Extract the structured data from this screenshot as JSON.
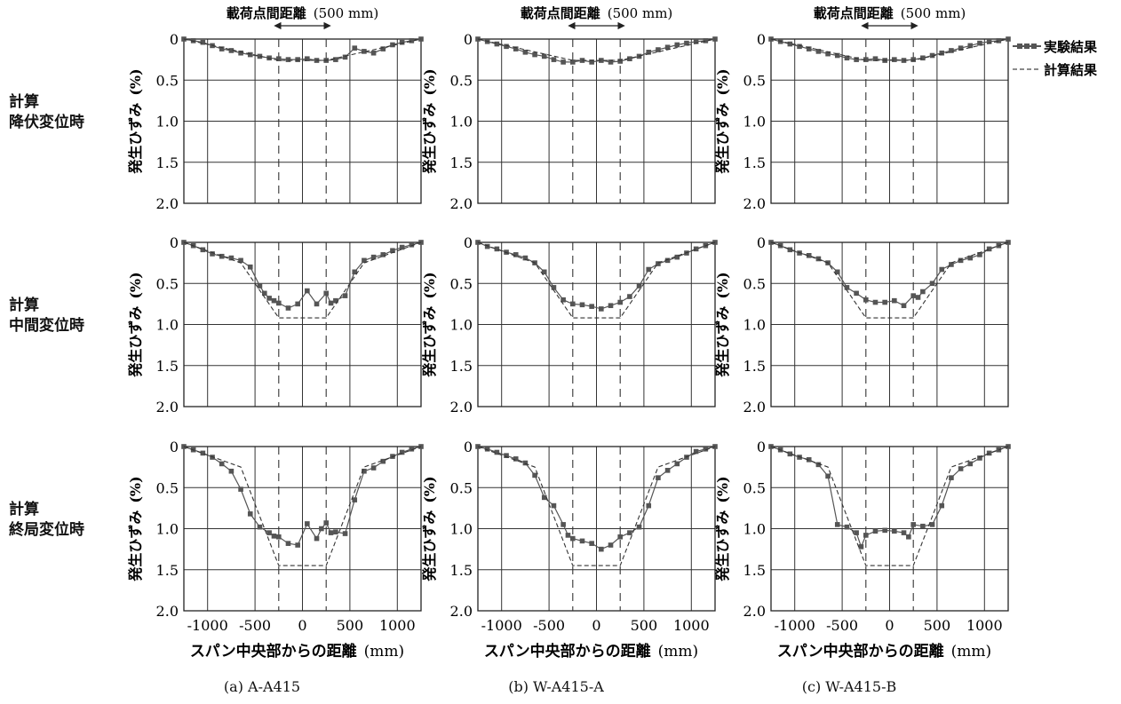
{
  "row_labels": [
    {
      "line1": "計算",
      "line2": "降伏変位時"
    },
    {
      "line1": "計算",
      "line2": "中間変位時"
    },
    {
      "line1": "計算",
      "line2": "終局変位時"
    }
  ],
  "captions": [
    "(a) A-A415",
    "(b) W-A415-A",
    "(c) W-A415-B"
  ],
  "legend": {
    "experimental": "実験結果",
    "calculated": "計算結果"
  },
  "chart_data": [
    {
      "type": "line",
      "panel": "(a) A-A415 / 計算 降伏変位時",
      "top_annotation": "載荷点間距離",
      "top_annotation_value": "(500 mm)",
      "xlabel": "スパン中央部からの距離",
      "xunit": "(mm)",
      "ylabel": "発生ひずみ",
      "yunit": "(%)",
      "xlim": [
        -1250,
        1250
      ],
      "ylim": [
        0,
        2
      ],
      "y_inverted": true,
      "xticks": [
        -1000,
        -500,
        0,
        500,
        1000
      ],
      "yticks": [
        "0",
        "0.5",
        "1.0",
        "1.5",
        "2.0"
      ],
      "grid": true,
      "series": [
        {
          "name": "実験結果",
          "style": "solid-square",
          "x": [
            -1250,
            -1150,
            -1050,
            -950,
            -850,
            -750,
            -650,
            -550,
            -450,
            -350,
            -250,
            -150,
            -50,
            50,
            150,
            250,
            350,
            450,
            550,
            650,
            750,
            850,
            950,
            1050,
            1150,
            1250
          ],
          "y": [
            0,
            0.02,
            0.04,
            0.08,
            0.12,
            0.14,
            0.17,
            0.19,
            0.21,
            0.23,
            0.24,
            0.25,
            0.25,
            0.24,
            0.26,
            0.26,
            0.25,
            0.22,
            0.11,
            0.15,
            0.17,
            0.12,
            0.07,
            0.04,
            0.02,
            0
          ]
        },
        {
          "name": "計算結果",
          "style": "dashed",
          "x": [
            -1250,
            -250,
            250,
            1250
          ],
          "y": [
            0,
            0.26,
            0.26,
            0
          ]
        }
      ]
    },
    {
      "type": "line",
      "panel": "(b) W-A415-A / 計算 降伏変位時",
      "top_annotation": "載荷点間距離",
      "top_annotation_value": "(500 mm)",
      "xlim": [
        -1250,
        1250
      ],
      "ylim": [
        0,
        2
      ],
      "y_inverted": true,
      "xticks": [
        -1000,
        -500,
        0,
        500,
        1000
      ],
      "yticks": [
        "0",
        "0.5",
        "1.0",
        "1.5",
        "2.0"
      ],
      "grid": true,
      "series": [
        {
          "name": "実験結果",
          "style": "solid-square",
          "x": [
            -1250,
            -1150,
            -1050,
            -950,
            -850,
            -750,
            -650,
            -550,
            -450,
            -350,
            -250,
            -150,
            -50,
            50,
            150,
            250,
            350,
            450,
            550,
            650,
            750,
            850,
            950,
            1050,
            1150,
            1250
          ],
          "y": [
            0,
            0.03,
            0.06,
            0.09,
            0.12,
            0.16,
            0.19,
            0.21,
            0.25,
            0.28,
            0.28,
            0.26,
            0.28,
            0.26,
            0.28,
            0.27,
            0.24,
            0.21,
            0.16,
            0.13,
            0.1,
            0.07,
            0.05,
            0.03,
            0.02,
            0
          ]
        },
        {
          "name": "計算結果",
          "style": "dashed",
          "x": [
            -1250,
            -250,
            250,
            1250
          ],
          "y": [
            0,
            0.26,
            0.26,
            0
          ]
        }
      ]
    },
    {
      "type": "line",
      "panel": "(c) W-A415-B / 計算 降伏変位時",
      "top_annotation": "載荷点間距離",
      "top_annotation_value": "(500 mm)",
      "xlim": [
        -1250,
        1250
      ],
      "ylim": [
        0,
        2
      ],
      "y_inverted": true,
      "xticks": [
        -1000,
        -500,
        0,
        500,
        1000
      ],
      "yticks": [
        "0",
        "0.5",
        "1.0",
        "1.5",
        "2.0"
      ],
      "grid": true,
      "series": [
        {
          "name": "実験結果",
          "style": "solid-square",
          "x": [
            -1250,
            -1150,
            -1050,
            -950,
            -850,
            -750,
            -650,
            -550,
            -450,
            -350,
            -250,
            -150,
            -50,
            50,
            150,
            250,
            350,
            450,
            550,
            650,
            750,
            850,
            950,
            1050,
            1150,
            1250
          ],
          "y": [
            0,
            0.03,
            0.06,
            0.09,
            0.12,
            0.15,
            0.18,
            0.2,
            0.23,
            0.25,
            0.25,
            0.24,
            0.26,
            0.25,
            0.26,
            0.25,
            0.23,
            0.2,
            0.17,
            0.14,
            0.11,
            0.08,
            0.05,
            0.03,
            0.02,
            0
          ]
        },
        {
          "name": "計算結果",
          "style": "dashed",
          "x": [
            -1250,
            -250,
            250,
            1250
          ],
          "y": [
            0,
            0.26,
            0.26,
            0
          ]
        }
      ]
    },
    {
      "type": "line",
      "panel": "(a) A-A415 / 計算 中間変位時",
      "xlim": [
        -1250,
        1250
      ],
      "ylim": [
        0,
        2
      ],
      "y_inverted": true,
      "xticks": [
        -1000,
        -500,
        0,
        500,
        1000
      ],
      "yticks": [
        "0",
        "0.5",
        "1.0",
        "1.5",
        "2.0"
      ],
      "grid": true,
      "series": [
        {
          "name": "実験結果",
          "style": "solid-square",
          "x": [
            -1250,
            -1150,
            -1050,
            -950,
            -850,
            -750,
            -650,
            -550,
            -450,
            -400,
            -350,
            -300,
            -250,
            -150,
            -50,
            50,
            150,
            250,
            300,
            350,
            450,
            550,
            650,
            750,
            850,
            950,
            1050,
            1150,
            1250
          ],
          "y": [
            0,
            0.04,
            0.09,
            0.14,
            0.17,
            0.19,
            0.22,
            0.3,
            0.53,
            0.62,
            0.68,
            0.71,
            0.74,
            0.8,
            0.75,
            0.59,
            0.75,
            0.62,
            0.74,
            0.71,
            0.65,
            0.36,
            0.22,
            0.18,
            0.15,
            0.1,
            0.06,
            0.03,
            0
          ]
        },
        {
          "name": "計算結果",
          "style": "dashed",
          "x": [
            -1250,
            -650,
            -250,
            250,
            650,
            1250
          ],
          "y": [
            0,
            0.25,
            0.92,
            0.92,
            0.25,
            0
          ]
        }
      ]
    },
    {
      "type": "line",
      "panel": "(b) W-A415-A / 計算 中間変位時",
      "xlim": [
        -1250,
        1250
      ],
      "ylim": [
        0,
        2
      ],
      "y_inverted": true,
      "xticks": [
        -1000,
        -500,
        0,
        500,
        1000
      ],
      "yticks": [
        "0",
        "0.5",
        "1.0",
        "1.5",
        "2.0"
      ],
      "grid": true,
      "series": [
        {
          "name": "実験結果",
          "style": "solid-square",
          "x": [
            -1250,
            -1150,
            -1050,
            -950,
            -850,
            -750,
            -650,
            -550,
            -450,
            -350,
            -250,
            -150,
            -50,
            50,
            150,
            250,
            350,
            450,
            550,
            650,
            750,
            850,
            950,
            1050,
            1150,
            1250
          ],
          "y": [
            0,
            0.05,
            0.08,
            0.12,
            0.15,
            0.19,
            0.25,
            0.36,
            0.55,
            0.7,
            0.75,
            0.76,
            0.78,
            0.81,
            0.77,
            0.73,
            0.66,
            0.53,
            0.33,
            0.26,
            0.22,
            0.18,
            0.13,
            0.08,
            0.04,
            0
          ]
        },
        {
          "name": "計算結果",
          "style": "dashed",
          "x": [
            -1250,
            -650,
            -250,
            250,
            650,
            1250
          ],
          "y": [
            0,
            0.25,
            0.92,
            0.92,
            0.25,
            0
          ]
        }
      ]
    },
    {
      "type": "line",
      "panel": "(c) W-A415-B / 計算 中間変位時",
      "xlim": [
        -1250,
        1250
      ],
      "ylim": [
        0,
        2
      ],
      "y_inverted": true,
      "xticks": [
        -1000,
        -500,
        0,
        500,
        1000
      ],
      "yticks": [
        "0",
        "0.5",
        "1.0",
        "1.5",
        "2.0"
      ],
      "grid": true,
      "series": [
        {
          "name": "実験結果",
          "style": "solid-square",
          "x": [
            -1250,
            -1150,
            -1050,
            -950,
            -850,
            -750,
            -650,
            -550,
            -450,
            -350,
            -250,
            -150,
            -50,
            50,
            150,
            250,
            300,
            350,
            450,
            550,
            650,
            750,
            850,
            950,
            1050,
            1150,
            1250
          ],
          "y": [
            0,
            0.04,
            0.09,
            0.13,
            0.16,
            0.2,
            0.25,
            0.36,
            0.55,
            0.62,
            0.7,
            0.73,
            0.73,
            0.71,
            0.77,
            0.65,
            0.67,
            0.6,
            0.5,
            0.33,
            0.27,
            0.22,
            0.19,
            0.15,
            0.08,
            0.04,
            0
          ]
        },
        {
          "name": "計算結果",
          "style": "dashed",
          "x": [
            -1250,
            -650,
            -250,
            250,
            650,
            1250
          ],
          "y": [
            0,
            0.25,
            0.92,
            0.92,
            0.25,
            0
          ]
        }
      ]
    },
    {
      "type": "line",
      "panel": "(a) A-A415 / 計算 終局変位時",
      "xlim": [
        -1250,
        1250
      ],
      "ylim": [
        0,
        2
      ],
      "y_inverted": true,
      "xticks": [
        -1000,
        -500,
        0,
        500,
        1000
      ],
      "yticks": [
        "0",
        "0.5",
        "1.0",
        "1.5",
        "2.0"
      ],
      "grid": true,
      "series": [
        {
          "name": "実験結果",
          "style": "solid-square",
          "x": [
            -1250,
            -1150,
            -1050,
            -950,
            -850,
            -750,
            -650,
            -550,
            -450,
            -350,
            -300,
            -250,
            -150,
            -50,
            50,
            150,
            200,
            250,
            300,
            350,
            450,
            550,
            650,
            750,
            850,
            950,
            1050,
            1150,
            1250
          ],
          "y": [
            0,
            0.04,
            0.08,
            0.13,
            0.21,
            0.3,
            0.52,
            0.82,
            0.98,
            1.05,
            1.09,
            1.1,
            1.18,
            1.2,
            0.94,
            1.12,
            1.0,
            0.93,
            1.05,
            1.04,
            1.06,
            0.65,
            0.3,
            0.26,
            0.18,
            0.12,
            0.07,
            0.03,
            0
          ]
        },
        {
          "name": "計算結果",
          "style": "dashed",
          "x": [
            -1250,
            -650,
            -500,
            -250,
            250,
            500,
            650,
            1250
          ],
          "y": [
            0,
            0.25,
            0.7,
            1.45,
            1.45,
            0.7,
            0.25,
            0
          ]
        }
      ]
    },
    {
      "type": "line",
      "panel": "(b) W-A415-A / 計算 終局変位時",
      "xlim": [
        -1250,
        1250
      ],
      "ylim": [
        0,
        2
      ],
      "y_inverted": true,
      "xticks": [
        -1000,
        -500,
        0,
        500,
        1000
      ],
      "yticks": [
        "0",
        "0.5",
        "1.0",
        "1.5",
        "2.0"
      ],
      "grid": true,
      "series": [
        {
          "name": "実験結果",
          "style": "solid-square",
          "x": [
            -1250,
            -1150,
            -1050,
            -950,
            -850,
            -750,
            -650,
            -550,
            -450,
            -350,
            -300,
            -250,
            -150,
            -50,
            50,
            150,
            250,
            350,
            450,
            550,
            650,
            750,
            850,
            950,
            1050,
            1150,
            1250
          ],
          "y": [
            0,
            0.03,
            0.07,
            0.11,
            0.15,
            0.2,
            0.35,
            0.62,
            0.72,
            0.95,
            1.08,
            1.12,
            1.15,
            1.18,
            1.25,
            1.2,
            1.1,
            1.05,
            0.98,
            0.72,
            0.38,
            0.29,
            0.21,
            0.13,
            0.06,
            0.03,
            0
          ]
        },
        {
          "name": "計算結果",
          "style": "dashed",
          "x": [
            -1250,
            -650,
            -500,
            -250,
            250,
            500,
            650,
            1250
          ],
          "y": [
            0,
            0.25,
            0.7,
            1.45,
            1.45,
            0.7,
            0.25,
            0
          ]
        }
      ]
    },
    {
      "type": "line",
      "panel": "(c) W-A415-B / 計算 終局変位時",
      "xlim": [
        -1250,
        1250
      ],
      "ylim": [
        0,
        2
      ],
      "y_inverted": true,
      "xticks": [
        -1000,
        -500,
        0,
        500,
        1000
      ],
      "yticks": [
        "0",
        "0.5",
        "1.0",
        "1.5",
        "2.0"
      ],
      "grid": true,
      "series": [
        {
          "name": "実験結果",
          "style": "solid-square",
          "x": [
            -1250,
            -1150,
            -1050,
            -950,
            -850,
            -750,
            -650,
            -550,
            -450,
            -350,
            -300,
            -250,
            -150,
            -50,
            50,
            150,
            200,
            250,
            350,
            450,
            550,
            650,
            750,
            850,
            950,
            1050,
            1150,
            1250
          ],
          "y": [
            0,
            0.04,
            0.09,
            0.13,
            0.16,
            0.22,
            0.36,
            0.95,
            0.98,
            1.05,
            1.22,
            1.08,
            1.03,
            1.02,
            1.03,
            1.05,
            1.1,
            0.95,
            0.97,
            0.95,
            0.72,
            0.38,
            0.27,
            0.21,
            0.14,
            0.08,
            0.04,
            0
          ]
        },
        {
          "name": "計算結果",
          "style": "dashed",
          "x": [
            -1250,
            -650,
            -500,
            -250,
            250,
            500,
            650,
            1250
          ],
          "y": [
            0,
            0.25,
            0.7,
            1.45,
            1.45,
            0.7,
            0.25,
            0
          ]
        }
      ]
    }
  ]
}
